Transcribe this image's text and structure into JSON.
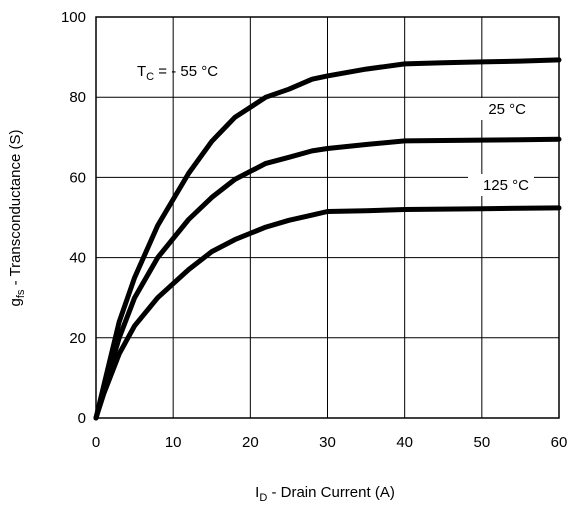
{
  "chart_data": {
    "type": "line",
    "xlabel_main": "I",
    "xlabel_sub": "D",
    "xlabel_rest": " - Drain Current (A)",
    "ylabel_main": "g",
    "ylabel_sub": "fs",
    "ylabel_rest": " - Transconductance (S)",
    "xlim": [
      0,
      60
    ],
    "ylim": [
      0,
      100
    ],
    "x_ticks": [
      0,
      10,
      20,
      30,
      40,
      50,
      60
    ],
    "y_ticks": [
      0,
      20,
      40,
      60,
      80,
      100
    ],
    "grid": true,
    "series": [
      {
        "label_prefix": "T",
        "label_sub": "C",
        "label_rest": " = - 55 °C",
        "points": [
          [
            0,
            0
          ],
          [
            1,
            8
          ],
          [
            3,
            24
          ],
          [
            5,
            35
          ],
          [
            8,
            48
          ],
          [
            12,
            61
          ],
          [
            15,
            69
          ],
          [
            18,
            75
          ],
          [
            22,
            80
          ],
          [
            25,
            82
          ],
          [
            28,
            84.5
          ],
          [
            30,
            85.3
          ],
          [
            35,
            87
          ],
          [
            40,
            88.3
          ],
          [
            45,
            88.6
          ],
          [
            50,
            88.8
          ],
          [
            55,
            89
          ],
          [
            60,
            89.3
          ]
        ]
      },
      {
        "label": "25 °C",
        "points": [
          [
            0,
            0
          ],
          [
            1,
            7
          ],
          [
            3,
            20
          ],
          [
            5,
            30
          ],
          [
            8,
            40
          ],
          [
            12,
            49.5
          ],
          [
            15,
            55
          ],
          [
            18,
            59.5
          ],
          [
            22,
            63.5
          ],
          [
            25,
            65
          ],
          [
            28,
            66.6
          ],
          [
            30,
            67.2
          ],
          [
            35,
            68.2
          ],
          [
            40,
            69.1
          ],
          [
            45,
            69.2
          ],
          [
            50,
            69.3
          ],
          [
            55,
            69.4
          ],
          [
            60,
            69.5
          ]
        ]
      },
      {
        "label": "125 °C",
        "points": [
          [
            0,
            0
          ],
          [
            1,
            6
          ],
          [
            3,
            16
          ],
          [
            5,
            23
          ],
          [
            8,
            30
          ],
          [
            12,
            37
          ],
          [
            15,
            41.5
          ],
          [
            18,
            44.5
          ],
          [
            22,
            47.6
          ],
          [
            25,
            49.3
          ],
          [
            28,
            50.6
          ],
          [
            30,
            51.5
          ],
          [
            35,
            51.7
          ],
          [
            40,
            52
          ],
          [
            45,
            52.1
          ],
          [
            50,
            52.2
          ],
          [
            55,
            52.3
          ],
          [
            60,
            52.4
          ]
        ]
      }
    ]
  }
}
